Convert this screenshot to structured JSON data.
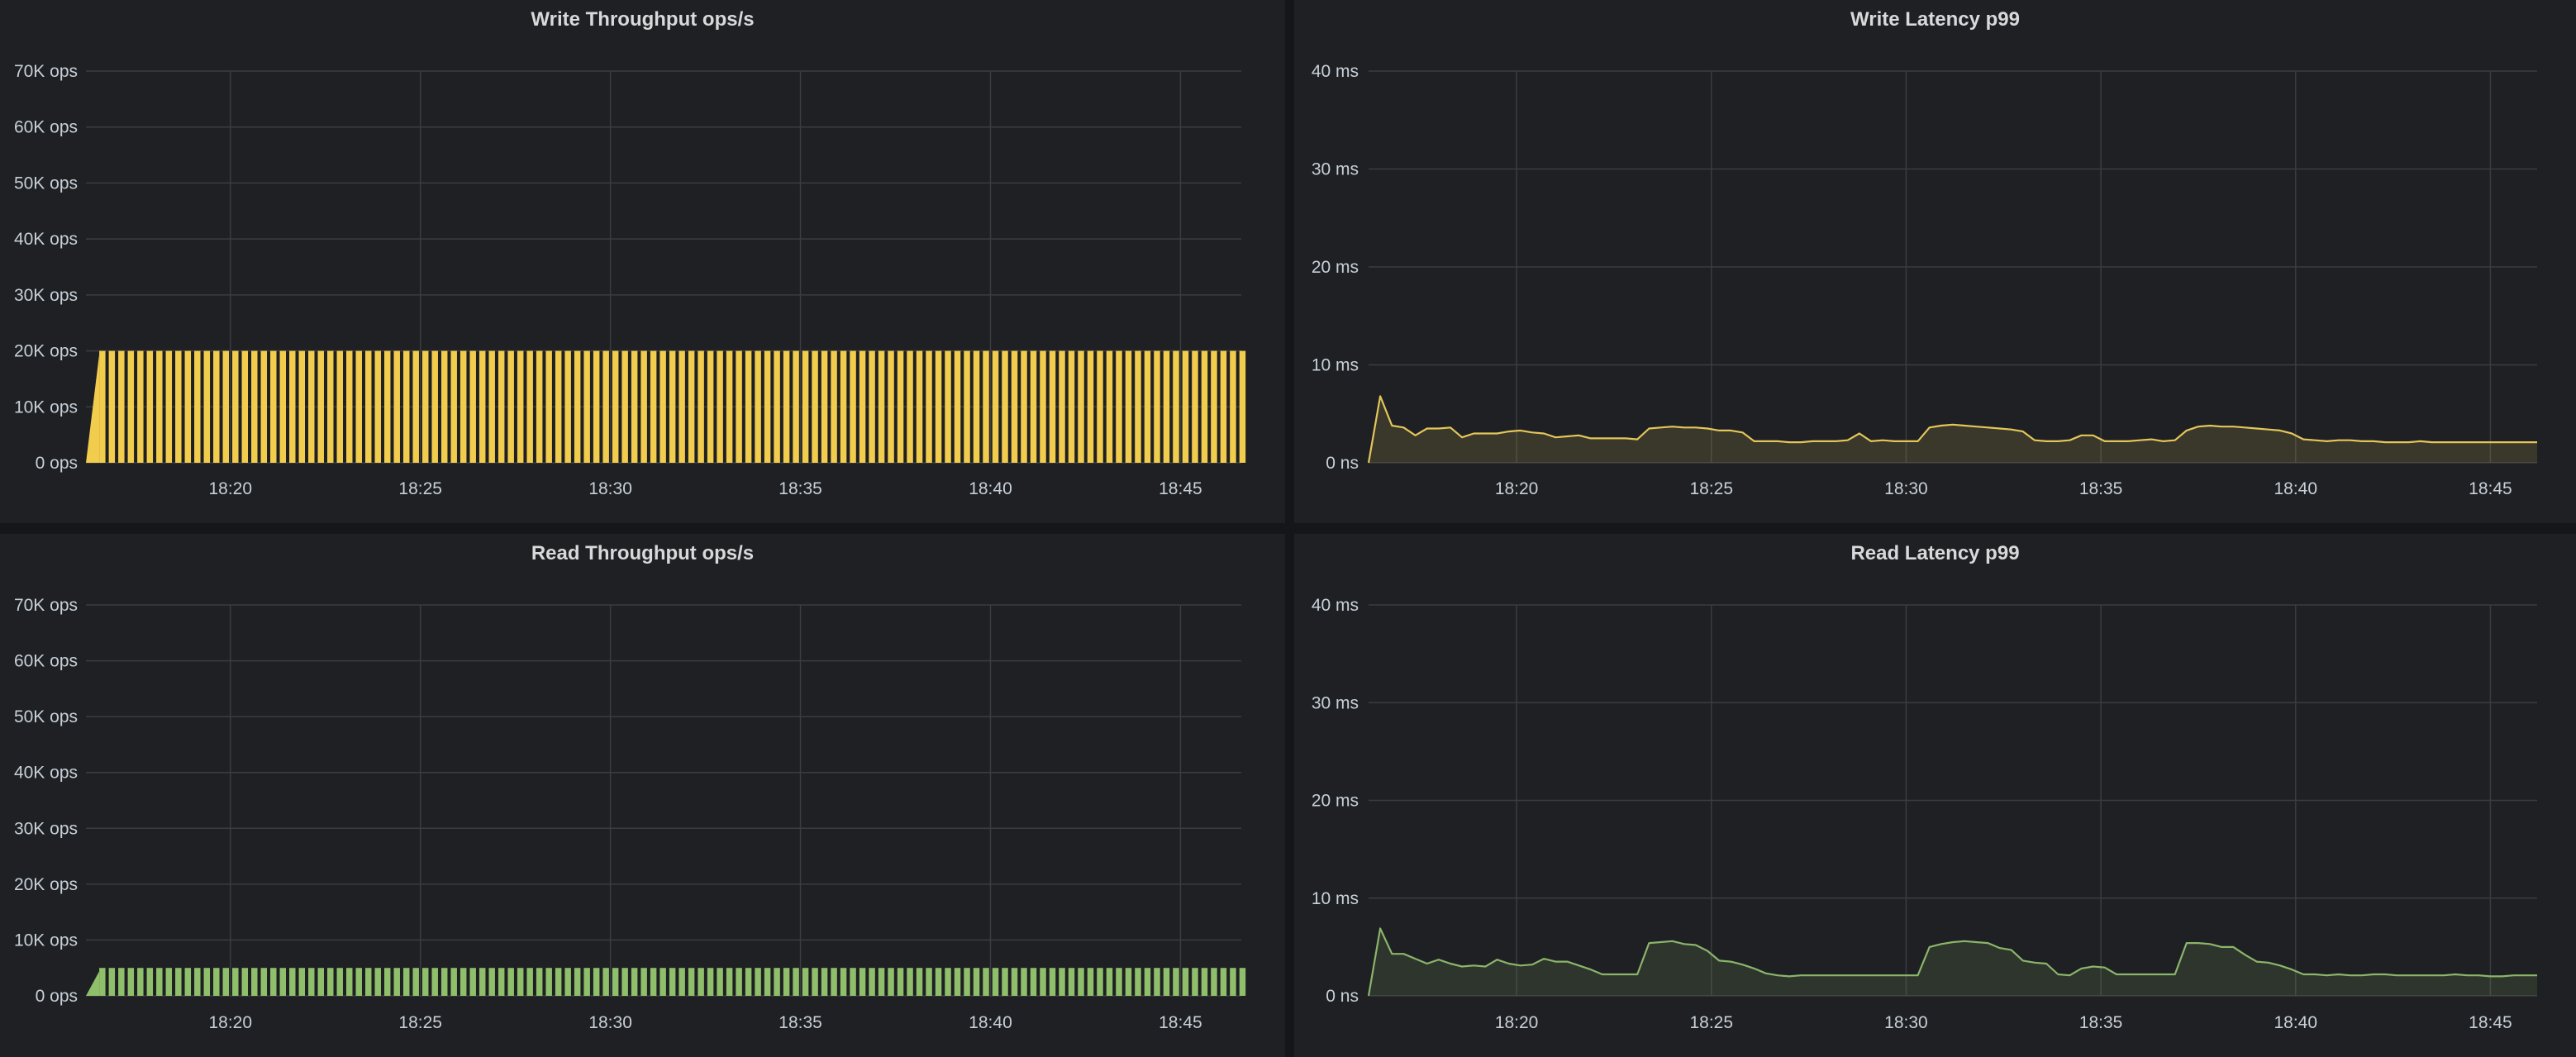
{
  "chart_data": [
    {
      "id": "write_throughput",
      "type": "bar",
      "title": "Write Throughput ops/s",
      "color": "#f2cc4d",
      "ylim": [
        0,
        70000
      ],
      "y_ticks": [
        "0 ops",
        "10K ops",
        "20K ops",
        "30K ops",
        "40K ops",
        "50K ops",
        "60K ops",
        "70K ops"
      ],
      "x_ticks": [
        "18:20",
        "18:25",
        "18:30",
        "18:35",
        "18:40",
        "18:45"
      ],
      "x_range_minutes": [
        16.2,
        46.6
      ],
      "bar_value": 20000,
      "grid": true
    },
    {
      "id": "write_latency",
      "type": "area",
      "title": "Write Latency p99",
      "color": "#e3c65a",
      "ylim": [
        0,
        40
      ],
      "y_ticks": [
        "0 ns",
        "10 ms",
        "20 ms",
        "30 ms",
        "40 ms"
      ],
      "x_ticks": [
        "18:20",
        "18:25",
        "18:30",
        "18:35",
        "18:40",
        "18:45"
      ],
      "x_range_minutes": [
        16.2,
        46.2
      ],
      "grid": true,
      "x": [
        16.2,
        16.5,
        16.8,
        17.1,
        17.4,
        17.7,
        18.0,
        18.3,
        18.6,
        18.9,
        19.2,
        19.5,
        19.8,
        20.1,
        20.4,
        20.7,
        21.0,
        21.3,
        21.6,
        21.9,
        22.2,
        22.5,
        22.8,
        23.1,
        23.4,
        23.7,
        24.0,
        24.3,
        24.6,
        24.9,
        25.2,
        25.5,
        25.8,
        26.1,
        26.4,
        26.7,
        27.0,
        27.3,
        27.6,
        27.9,
        28.2,
        28.5,
        28.8,
        29.1,
        29.4,
        29.7,
        30.0,
        30.3,
        30.6,
        30.9,
        31.2,
        31.5,
        31.8,
        32.1,
        32.4,
        32.7,
        33.0,
        33.3,
        33.6,
        33.9,
        34.2,
        34.5,
        34.8,
        35.1,
        35.4,
        35.7,
        36.0,
        36.3,
        36.6,
        36.9,
        37.2,
        37.5,
        37.8,
        38.1,
        38.4,
        38.7,
        39.0,
        39.3,
        39.6,
        39.9,
        40.2,
        40.5,
        40.8,
        41.1,
        41.4,
        41.7,
        42.0,
        42.3,
        42.6,
        42.9,
        43.2,
        43.5,
        43.8,
        44.1,
        44.4,
        44.7,
        45.0,
        45.3,
        45.6,
        45.9,
        46.2
      ],
      "y": [
        0,
        6.8,
        3.8,
        3.6,
        2.8,
        3.5,
        3.5,
        3.6,
        2.6,
        3.0,
        3.0,
        3.0,
        3.2,
        3.3,
        3.1,
        3.0,
        2.6,
        2.7,
        2.8,
        2.5,
        2.5,
        2.5,
        2.5,
        2.4,
        3.5,
        3.6,
        3.7,
        3.6,
        3.6,
        3.5,
        3.3,
        3.3,
        3.1,
        2.2,
        2.2,
        2.2,
        2.1,
        2.1,
        2.2,
        2.2,
        2.2,
        2.3,
        3.0,
        2.2,
        2.3,
        2.2,
        2.2,
        2.2,
        3.6,
        3.8,
        3.9,
        3.8,
        3.7,
        3.6,
        3.5,
        3.4,
        3.2,
        2.3,
        2.2,
        2.2,
        2.3,
        2.8,
        2.8,
        2.2,
        2.2,
        2.2,
        2.3,
        2.4,
        2.2,
        2.3,
        3.3,
        3.7,
        3.8,
        3.7,
        3.7,
        3.6,
        3.5,
        3.4,
        3.3,
        3.0,
        2.4,
        2.3,
        2.2,
        2.3,
        2.3,
        2.2,
        2.2,
        2.1,
        2.1,
        2.1,
        2.2,
        2.1,
        2.1,
        2.1,
        2.1,
        2.1,
        2.1,
        2.1,
        2.1,
        2.1,
        2.1
      ],
      "fill_opacity": 0.14
    },
    {
      "id": "read_throughput",
      "type": "bar",
      "title": "Read Throughput ops/s",
      "color": "#8fbf6a",
      "ylim": [
        0,
        70000
      ],
      "y_ticks": [
        "0 ops",
        "10K ops",
        "20K ops",
        "30K ops",
        "40K ops",
        "50K ops",
        "60K ops",
        "70K ops"
      ],
      "x_ticks": [
        "18:20",
        "18:25",
        "18:30",
        "18:35",
        "18:40",
        "18:45"
      ],
      "x_range_minutes": [
        16.2,
        46.6
      ],
      "bar_value": 5000,
      "grid": true
    },
    {
      "id": "read_latency",
      "type": "area",
      "title": "Read Latency p99",
      "color": "#8bb56a",
      "ylim": [
        0,
        40
      ],
      "y_ticks": [
        "0 ns",
        "10 ms",
        "20 ms",
        "30 ms",
        "40 ms"
      ],
      "x_ticks": [
        "18:20",
        "18:25",
        "18:30",
        "18:35",
        "18:40",
        "18:45"
      ],
      "x_range_minutes": [
        16.2,
        46.2
      ],
      "grid": true,
      "x": [
        16.2,
        16.5,
        16.8,
        17.1,
        17.4,
        17.7,
        18.0,
        18.3,
        18.6,
        18.9,
        19.2,
        19.5,
        19.8,
        20.1,
        20.4,
        20.7,
        21.0,
        21.3,
        21.6,
        21.9,
        22.2,
        22.5,
        22.8,
        23.1,
        23.4,
        23.7,
        24.0,
        24.3,
        24.6,
        24.9,
        25.2,
        25.5,
        25.8,
        26.1,
        26.4,
        26.7,
        27.0,
        27.3,
        27.6,
        27.9,
        28.2,
        28.5,
        28.8,
        29.1,
        29.4,
        29.7,
        30.0,
        30.3,
        30.6,
        30.9,
        31.2,
        31.5,
        31.8,
        32.1,
        32.4,
        32.7,
        33.0,
        33.3,
        33.6,
        33.9,
        34.2,
        34.5,
        34.8,
        35.1,
        35.4,
        35.7,
        36.0,
        36.3,
        36.6,
        36.9,
        37.2,
        37.5,
        37.8,
        38.1,
        38.4,
        38.7,
        39.0,
        39.3,
        39.6,
        39.9,
        40.2,
        40.5,
        40.8,
        41.1,
        41.4,
        41.7,
        42.0,
        42.3,
        42.6,
        42.9,
        43.2,
        43.5,
        43.8,
        44.1,
        44.4,
        44.7,
        45.0,
        45.3,
        45.6,
        45.9,
        46.2
      ],
      "y": [
        0,
        6.9,
        4.3,
        4.3,
        3.8,
        3.3,
        3.7,
        3.3,
        3.0,
        3.1,
        3.0,
        3.7,
        3.3,
        3.1,
        3.2,
        3.8,
        3.5,
        3.5,
        3.1,
        2.7,
        2.2,
        2.2,
        2.2,
        2.2,
        5.4,
        5.5,
        5.6,
        5.3,
        5.2,
        4.6,
        3.6,
        3.5,
        3.2,
        2.8,
        2.3,
        2.1,
        2.0,
        2.1,
        2.1,
        2.1,
        2.1,
        2.1,
        2.1,
        2.1,
        2.1,
        2.1,
        2.1,
        2.1,
        5.0,
        5.3,
        5.5,
        5.6,
        5.5,
        5.4,
        4.9,
        4.7,
        3.6,
        3.4,
        3.3,
        2.2,
        2.1,
        2.8,
        3.0,
        2.9,
        2.2,
        2.2,
        2.2,
        2.2,
        2.2,
        2.2,
        5.4,
        5.4,
        5.3,
        5.0,
        5.0,
        4.2,
        3.5,
        3.4,
        3.1,
        2.7,
        2.2,
        2.2,
        2.1,
        2.2,
        2.1,
        2.1,
        2.2,
        2.2,
        2.1,
        2.1,
        2.1,
        2.1,
        2.1,
        2.2,
        2.1,
        2.1,
        2.0,
        2.0,
        2.1,
        2.1,
        2.1
      ],
      "fill_opacity": 0.14
    }
  ]
}
